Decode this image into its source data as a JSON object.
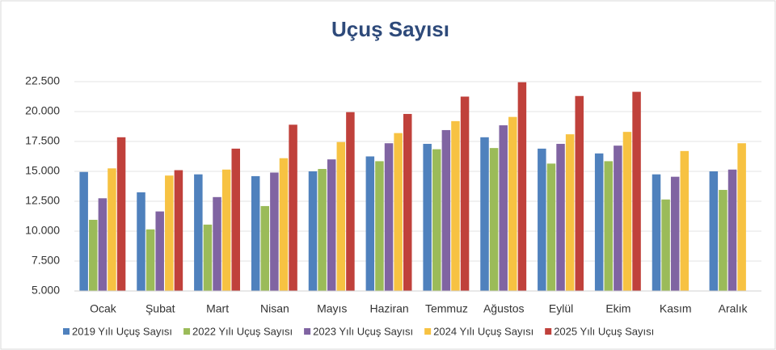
{
  "chart_data": {
    "type": "bar",
    "title": "Uçuş Sayısı",
    "categories": [
      "Ocak",
      "Şubat",
      "Mart",
      "Nisan",
      "Mayıs",
      "Haziran",
      "Temmuz",
      "Ağustos",
      "Eylül",
      "Ekim",
      "Kasım",
      "Aralık"
    ],
    "series": [
      {
        "name": "2019 Yılı Uçuş Sayısı",
        "color": "#4f81bd",
        "values": [
          14950,
          13250,
          14750,
          14600,
          15000,
          16250,
          17300,
          17850,
          16900,
          16500,
          14750,
          15000
        ]
      },
      {
        "name": "2022 Yılı Uçuş Sayısı",
        "color": "#9bbb59",
        "values": [
          10950,
          10150,
          10550,
          12100,
          15200,
          15850,
          16850,
          16950,
          15650,
          15850,
          12650,
          13450
        ]
      },
      {
        "name": "2023 Yılı Uçuş Sayısı",
        "color": "#8064a2",
        "values": [
          12750,
          11650,
          12850,
          14900,
          16000,
          17350,
          18450,
          18850,
          17300,
          17150,
          14550,
          15150
        ]
      },
      {
        "name": "2024 Yılı Uçuş Sayısı",
        "color": "#f7c242",
        "values": [
          15250,
          14650,
          15150,
          16100,
          17450,
          18200,
          19200,
          19550,
          18100,
          18300,
          16700,
          17350
        ]
      },
      {
        "name": "2025 Yılı Uçuş Sayısı",
        "color": "#c0413b",
        "values": [
          17850,
          15100,
          16900,
          18900,
          19950,
          19800,
          21250,
          22450,
          21300,
          21650,
          null,
          null
        ]
      }
    ],
    "ylim": [
      5000,
      22500
    ],
    "yticks": [
      {
        "value": 5000,
        "label": "5.000"
      },
      {
        "value": 7500,
        "label": "7.500"
      },
      {
        "value": 10000,
        "label": "10.000"
      },
      {
        "value": 12500,
        "label": "12.500"
      },
      {
        "value": 15000,
        "label": "15.000"
      },
      {
        "value": 17500,
        "label": "17.500"
      },
      {
        "value": 20000,
        "label": "20.000"
      },
      {
        "value": 22500,
        "label": "22.500"
      }
    ],
    "grid": true,
    "legend": "bottom"
  }
}
